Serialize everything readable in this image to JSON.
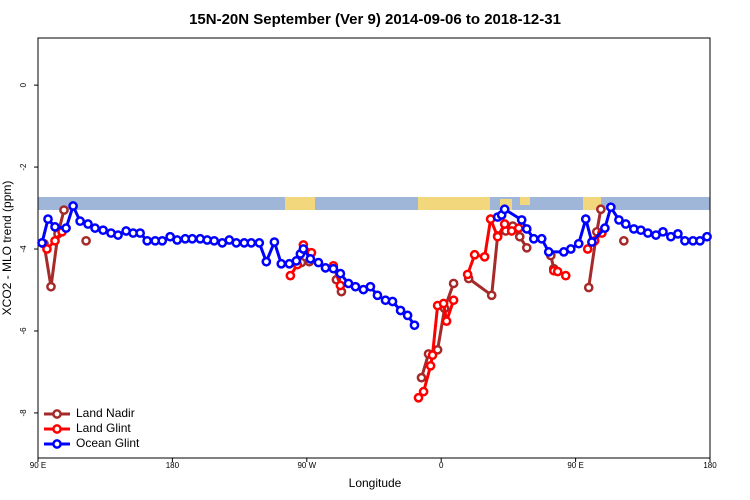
{
  "chart_data": {
    "type": "line",
    "title": "15N-20N September (Ver 9)   2014-09-06 to 2018-12-31",
    "x_label": "Longitude",
    "y_label": "XCO2 - MLO trend (ppm)",
    "xlim": [
      90,
      540
    ],
    "ylim": [
      -9.1,
      1.15
    ],
    "xticks": [
      {
        "value": 90,
        "label": "90 E"
      },
      180,
      {
        "value": 270,
        "label": "90 W"
      },
      {
        "value": 360,
        "label": "0"
      },
      {
        "value": 450,
        "label": "90 E"
      },
      {
        "value": 540,
        "label": "180"
      }
    ],
    "yticks": [
      0,
      -2,
      -4,
      -6,
      -8
    ],
    "legend": "bottom-left",
    "series": [
      {
        "name": "Land Nadir",
        "color": "#a52a2a",
        "x": [
          94.0,
          98.7,
          103.4,
          107.4,
          null,
          122.2,
          null,
          266.4,
          271.7,
          null,
          289.8,
          293.2,
          null,
          346.8,
          351.5,
          357.6,
          362.3,
          368.3,
          null,
          378.4,
          393.8,
          397.8,
          403.2,
          407.9,
          412.6,
          417.3,
          null,
          433.4,
          435.4,
          null,
          458.8,
          464.2,
          466.9,
          null,
          482.3
        ],
        "values": [
          -3.87,
          -4.92,
          -3.63,
          -3.05,
          null,
          -3.8,
          null,
          -4.33,
          -4.31,
          null,
          -4.75,
          -5.04,
          null,
          -7.14,
          -6.56,
          -6.46,
          -5.45,
          -4.84,
          null,
          -4.72,
          -5.13,
          -3.68,
          -3.56,
          -3.44,
          -3.7,
          -3.97,
          null,
          -4.16,
          -4.48,
          null,
          -4.94,
          -3.58,
          -3.03,
          null,
          -3.8
        ]
      },
      {
        "name": "Land Glint",
        "color": "#ff0000",
        "x": [
          96.0,
          101.4,
          106.1,
          null,
          259.0,
          263.7,
          267.7,
          273.1,
          null,
          287.8,
          292.5,
          null,
          344.8,
          348.2,
          352.9,
          354.2,
          357.6,
          361.6,
          363.6,
          368.3,
          null,
          377.7,
          382.4,
          389.1,
          393.1,
          397.8,
          402.5,
          407.2,
          411.9,
          null,
          435.4,
          438.0,
          443.4,
          null,
          458.1,
          462.8,
          467.6
        ],
        "values": [
          -4.0,
          -3.8,
          -3.58,
          null,
          -4.65,
          -4.38,
          -3.9,
          -4.09,
          null,
          -4.41,
          -4.89,
          null,
          -7.63,
          -7.48,
          -6.85,
          -6.59,
          -5.38,
          -5.33,
          -5.76,
          -5.25,
          null,
          -4.62,
          -4.14,
          -4.19,
          -3.27,
          -3.7,
          -3.39,
          -3.56,
          -3.49,
          null,
          -4.53,
          -4.55,
          -4.65,
          null,
          -4.0,
          -3.8,
          -3.61
        ]
      },
      {
        "name": "Ocean Glint",
        "color": "#0000ff",
        "x": [
          92.7,
          96.7,
          101.4,
          108.8,
          113.5,
          118.2,
          123.5,
          128.2,
          133.6,
          138.9,
          143.6,
          149.0,
          153.7,
          158.4,
          163.1,
          168.5,
          173.2,
          178.5,
          183.2,
          188.6,
          193.3,
          198.6,
          203.3,
          208.0,
          213.4,
          218.1,
          222.8,
          228.1,
          232.8,
          238.2,
          242.9,
          248.3,
          252.9,
          258.3,
          263.0,
          265.7,
          267.7,
          272.4,
          277.8,
          282.5,
          287.8,
          292.5,
          297.9,
          302.6,
          307.9,
          312.6,
          317.3,
          322.7,
          327.4,
          332.8,
          337.5,
          342.1,
          null,
          397.8,
          400.5,
          402.5,
          413.9,
          417.3,
          422.0,
          427.3,
          432.0,
          442.1,
          446.8,
          452.1,
          456.8,
          460.9,
          469.6,
          473.6,
          479.0,
          483.6,
          489.0,
          493.7,
          498.4,
          503.8,
          508.5,
          513.8,
          518.5,
          523.2,
          528.6,
          533.3,
          538.0
        ],
        "values": [
          -3.85,
          -3.27,
          -3.46,
          -3.49,
          -2.95,
          -3.32,
          -3.39,
          -3.49,
          -3.54,
          -3.61,
          -3.66,
          -3.56,
          -3.61,
          -3.61,
          -3.8,
          -3.8,
          -3.8,
          -3.7,
          -3.78,
          -3.75,
          -3.75,
          -3.75,
          -3.78,
          -3.8,
          -3.85,
          -3.78,
          -3.85,
          -3.85,
          -3.85,
          -3.85,
          -4.31,
          -3.83,
          -4.36,
          -4.36,
          -4.29,
          -4.12,
          -4.0,
          -4.24,
          -4.33,
          -4.46,
          -4.48,
          -4.6,
          -4.84,
          -4.92,
          -4.99,
          -4.92,
          -5.13,
          -5.25,
          -5.28,
          -5.5,
          -5.62,
          -5.86,
          null,
          -3.22,
          -3.17,
          -3.03,
          -3.29,
          -3.51,
          -3.75,
          -3.75,
          -4.07,
          -4.07,
          -4.0,
          -3.87,
          -3.27,
          -3.83,
          -3.49,
          -2.98,
          -3.29,
          -3.39,
          -3.51,
          -3.54,
          -3.61,
          -3.66,
          -3.58,
          -3.7,
          -3.63,
          -3.8,
          -3.8,
          -3.8,
          -3.7
        ]
      }
    ]
  }
}
